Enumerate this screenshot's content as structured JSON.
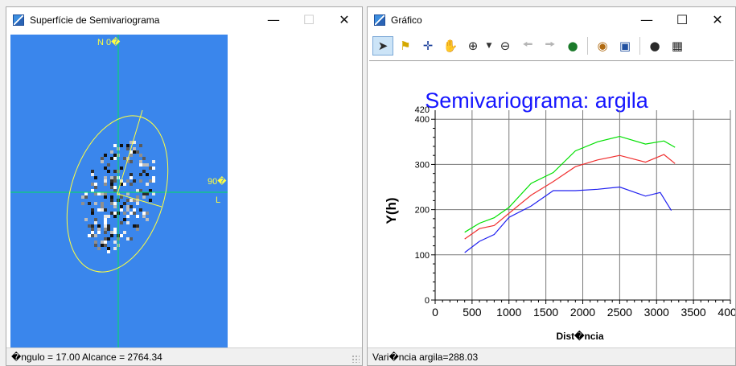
{
  "left_window": {
    "title": "Superfície de Semivariograma",
    "north_label": "N 0�",
    "east_angle_label": "90�",
    "east_label": "L",
    "status": "�ngulo = 17.00   Alcance = 2764.34",
    "colors": {
      "background": "#3a86ec",
      "axis": "#00e060",
      "ellipse": "#ffff40"
    },
    "ellipse": {
      "angle_deg": 17.0,
      "range": 2764.34
    }
  },
  "right_window": {
    "title": "Gráfico",
    "toolbar": [
      {
        "icon": "select-arrow-icon",
        "active": true
      },
      {
        "icon": "annotation-flag-icon"
      },
      {
        "icon": "crosshair-icon"
      },
      {
        "icon": "pan-hand-icon"
      },
      {
        "icon": "zoom-in-icon"
      },
      {
        "icon": "zoom-dropdown-icon"
      },
      {
        "icon": "zoom-out-icon"
      },
      {
        "icon": "back-arrow-icon",
        "disabled": true
      },
      {
        "icon": "forward-arrow-icon",
        "disabled": true
      },
      {
        "icon": "globe-icon"
      },
      {
        "icon": "palette-icon"
      },
      {
        "icon": "save-icon"
      },
      {
        "icon": "camera-icon"
      },
      {
        "icon": "table-icon"
      }
    ],
    "status": "Vari�ncia argila=288.03"
  },
  "chart_data": {
    "type": "line",
    "title": "Semivariograma: argila",
    "xlabel": "Dist�ncia",
    "ylabel": "Y(h)",
    "xlim": [
      0,
      4000
    ],
    "ylim": [
      0,
      420
    ],
    "x_ticks": [
      "0",
      "500",
      "1000",
      "1500",
      "2000",
      "2500",
      "3000",
      "3500",
      "4000"
    ],
    "y_ticks": [
      "0",
      "100",
      "200",
      "300",
      "400"
    ],
    "y_top_label": "420",
    "grid": true,
    "series": [
      {
        "color": "#00e000",
        "x": [
          400,
          600,
          800,
          1000,
          1300,
          1600,
          1900,
          2200,
          2500,
          2850,
          3100,
          3250
        ],
        "y": [
          150,
          170,
          182,
          205,
          258,
          282,
          330,
          350,
          362,
          345,
          352,
          338
        ]
      },
      {
        "color": "#f03030",
        "x": [
          400,
          600,
          800,
          1000,
          1300,
          1600,
          1900,
          2200,
          2500,
          2850,
          3100,
          3250
        ],
        "y": [
          135,
          158,
          165,
          192,
          232,
          262,
          295,
          310,
          320,
          305,
          322,
          302
        ]
      },
      {
        "color": "#2020f0",
        "x": [
          400,
          600,
          800,
          1000,
          1300,
          1600,
          1900,
          2200,
          2500,
          2850,
          3050,
          3200
        ],
        "y": [
          105,
          130,
          145,
          183,
          208,
          242,
          242,
          245,
          250,
          230,
          238,
          198
        ]
      }
    ]
  }
}
